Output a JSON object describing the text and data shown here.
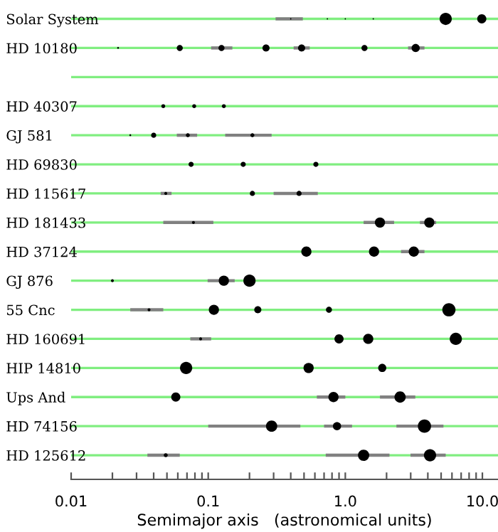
{
  "chart_data": {
    "type": "bubble",
    "orientation": "horizontal",
    "log": "x",
    "grid": "y",
    "legend": false,
    "xlabel": "Semimajor axis   (astronomical units)",
    "categories": [
      "Solar System",
      "HD 10180",
      null,
      "HD 40307",
      "GJ 581",
      "HD 69830",
      "HD 115617",
      "HD 181433",
      "HD 37124",
      "GJ 876",
      "55 Cnc",
      "HD 160691",
      "HIP 14810",
      "Ups And",
      "HD 74156",
      "HD 125612"
    ],
    "xlim": [
      0.01,
      13
    ],
    "xticks": [
      0.01,
      {
        "value": 0.02,
        "label": null
      },
      {
        "value": 0.03,
        "label": null
      },
      {
        "value": 0.04,
        "label": null
      },
      {
        "value": 0.05,
        "label": null
      },
      {
        "value": 0.06,
        "label": null
      },
      {
        "value": 0.07,
        "label": null
      },
      {
        "value": 0.08,
        "label": null
      },
      {
        "value": 0.09,
        "label": null
      },
      0.1,
      {
        "value": 0.2,
        "label": null
      },
      {
        "value": 0.3,
        "label": null
      },
      {
        "value": 0.4,
        "label": null
      },
      {
        "value": 0.5,
        "label": null
      },
      {
        "value": 0.6,
        "label": null
      },
      {
        "value": 0.7,
        "label": null
      },
      {
        "value": 0.8,
        "label": null
      },
      {
        "value": 0.9,
        "label": null
      },
      {
        "value": 1,
        "label": "1.0"
      },
      {
        "value": 2,
        "label": null
      },
      {
        "value": 3,
        "label": null
      },
      {
        "value": 4,
        "label": null
      },
      {
        "value": 5,
        "label": null
      },
      {
        "value": 6,
        "label": null
      },
      {
        "value": 7,
        "label": null
      },
      {
        "value": 8,
        "label": null
      },
      {
        "value": 9,
        "label": null
      },
      {
        "value": 10,
        "label": "10.0"
      }
    ],
    "series": [
      {
        "color": "#000000",
        "values": [
          0.4,
          0.022,
          null,
          0.047,
          0.027,
          0.075,
          0.049,
          0.078,
          0.52,
          0.02,
          0.037,
          0.088,
          0.069,
          0.058,
          0.29,
          0.049
        ],
        "sizes": [
          0.01,
          0.02,
          null,
          0.09,
          0.02,
          0.15,
          0.05,
          0.05,
          0.59,
          0.05,
          0.05,
          0.05,
          0.85,
          0.48,
          0.72,
          0.09
        ],
        "errors": [
          [
            0.31,
            0.49
          ],
          null,
          null,
          null,
          null,
          null,
          [
            0.045,
            0.054
          ],
          [
            0.047,
            0.109
          ],
          null,
          null,
          [
            0.027,
            0.047
          ],
          [
            0.074,
            0.105
          ],
          null,
          null,
          [
            0.1,
            0.47
          ],
          [
            0.036,
            0.062
          ]
        ]
      },
      {
        "color": "#000000",
        "values": [
          0.74,
          0.062,
          null,
          0.079,
          0.04,
          0.18,
          0.21,
          1.79,
          1.62,
          0.13,
          0.11,
          0.9,
          0.54,
          0.82,
          0.87,
          1.36
        ],
        "sizes": [
          0.01,
          0.21,
          null,
          0.09,
          0.15,
          0.15,
          0.15,
          0.59,
          0.59,
          0.59,
          0.59,
          0.48,
          0.59,
          0.59,
          0.38,
          0.72
        ],
        "errors": [
          null,
          null,
          null,
          null,
          null,
          null,
          null,
          [
            1.36,
            2.27
          ],
          null,
          [
            0.099,
            0.156
          ],
          null,
          null,
          null,
          [
            0.62,
            1.0
          ],
          [
            0.7,
            1.12
          ],
          [
            0.72,
            2.1
          ]
        ]
      },
      {
        "color": "#000000",
        "values": [
          1.0,
          0.125,
          null,
          0.13,
          0.071,
          0.61,
          0.46,
          4.1,
          3.16,
          0.2,
          0.23,
          1.47,
          1.86,
          2.51,
          3.78,
          4.15
        ],
        "sizes": [
          0.01,
          0.21,
          null,
          0.09,
          0.09,
          0.15,
          0.15,
          0.59,
          0.59,
          0.85,
          0.29,
          0.59,
          0.38,
          0.72,
          1,
          0.85
        ],
        "errors": [
          null,
          [
            0.105,
            0.15
          ],
          null,
          null,
          [
            0.059,
            0.083
          ],
          null,
          [
            0.3,
            0.63
          ],
          [
            3.5,
            4.6
          ],
          [
            2.55,
            3.78
          ],
          null,
          null,
          null,
          null,
          [
            1.79,
            3.24
          ],
          [
            2.36,
            5.2
          ],
          [
            2.99,
            5.4
          ]
        ]
      },
      {
        "color": "#000000",
        "values": [
          1.6,
          0.264,
          null,
          null,
          0.21,
          null,
          null,
          null,
          null,
          null,
          0.76,
          6.4,
          null,
          null,
          null,
          null
        ],
        "sizes": [
          0.01,
          0.29,
          null,
          null,
          0.09,
          null,
          null,
          null,
          null,
          null,
          0.21,
          0.85,
          null,
          null,
          null,
          null
        ],
        "errors": [
          null,
          null,
          null,
          null,
          [
            0.133,
            0.29
          ],
          null,
          null,
          null,
          null,
          null,
          null,
          null,
          null,
          null,
          null,
          null
        ]
      },
      {
        "color": "#000000",
        "values": [
          5.4,
          0.48,
          null,
          null,
          null,
          null,
          null,
          null,
          null,
          null,
          5.7,
          null,
          null,
          null,
          null,
          null
        ],
        "sizes": [
          0.85,
          0.29,
          null,
          null,
          null,
          null,
          null,
          null,
          null,
          null,
          1,
          null,
          null,
          null,
          null,
          null
        ],
        "errors": [
          null,
          [
            0.42,
            0.55
          ],
          null,
          null,
          null,
          null,
          null,
          null,
          null,
          null,
          null,
          null,
          null,
          null,
          null,
          null
        ]
      },
      {
        "color": "#000000",
        "values": [
          9.9,
          1.38,
          null,
          null,
          null,
          null,
          null,
          null,
          null,
          null,
          null,
          null,
          null,
          null,
          null,
          null
        ],
        "sizes": [
          0.48,
          0.21,
          null,
          null,
          null,
          null,
          null,
          null,
          null,
          null,
          null,
          null,
          null,
          null,
          null,
          null
        ]
      },
      {
        "color": "#000000",
        "values": [
          null,
          3.26,
          null,
          null,
          null,
          null,
          null,
          null,
          null,
          null,
          null,
          null,
          null,
          null,
          null,
          null
        ],
        "sizes": [
          null,
          0.38,
          null,
          null,
          null,
          null,
          null,
          null,
          null,
          null,
          null,
          null,
          null,
          null,
          null,
          null
        ],
        "errors": [
          null,
          [
            2.87,
            3.78
          ],
          null,
          null,
          null,
          null,
          null,
          null,
          null,
          null,
          null,
          null,
          null,
          null,
          null,
          null
        ]
      }
    ]
  }
}
